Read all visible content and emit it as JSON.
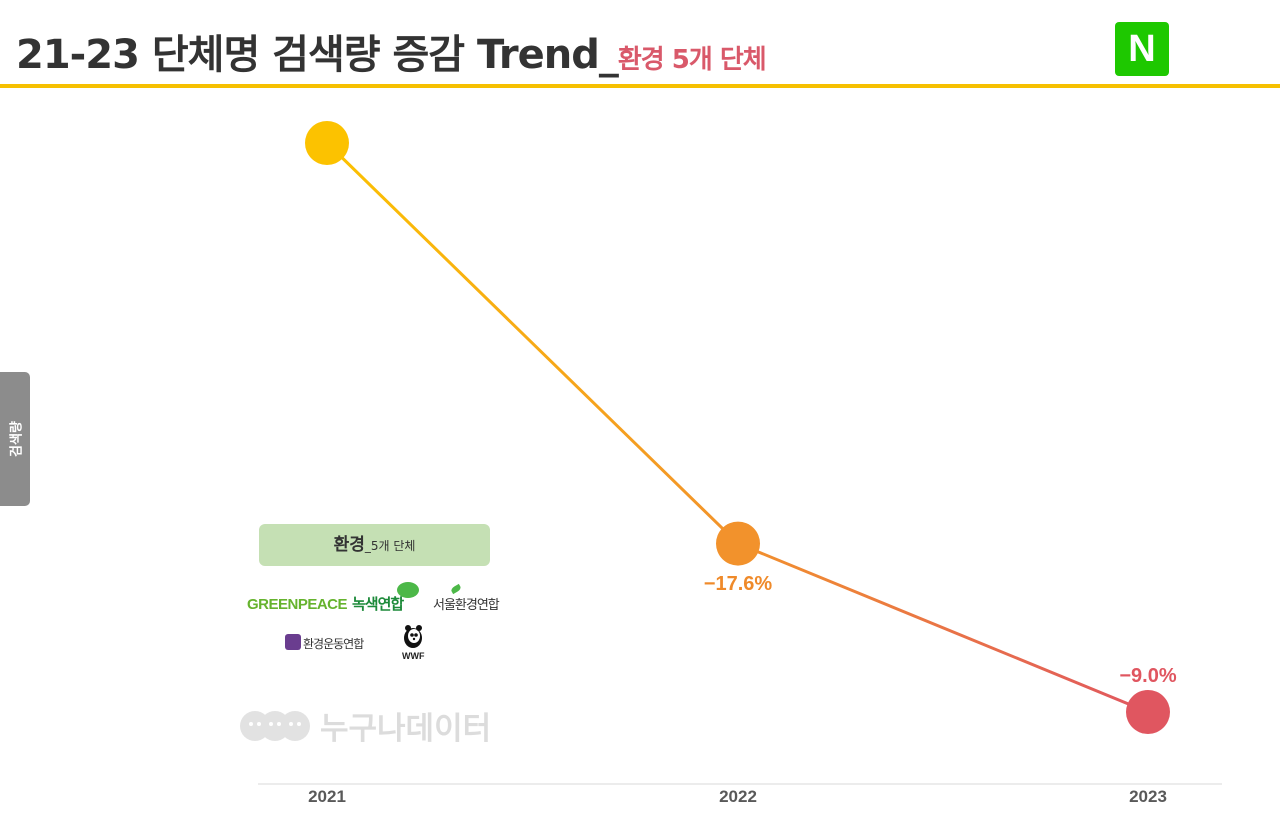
{
  "header": {
    "title": "21-23 단체명 검색량 증감 Trend_",
    "subtitle": "환경 5개 단체",
    "logo_letter": "N"
  },
  "y_axis_tab": {
    "label": "검색량"
  },
  "group": {
    "main": "환경",
    "sub": "_5개 단체",
    "organizations": [
      "GREENPEACE",
      "녹색연합",
      "서울환경연합",
      "환경운동연합",
      "WWF"
    ]
  },
  "watermark": {
    "text": "누구나데이터"
  },
  "colors": {
    "accent_bar": "#f6c000",
    "naver_green": "#1ec800",
    "point_2021": "#fcc200",
    "point_2022": "#f2922c",
    "point_2023": "#e05660",
    "label_2022": "#ef8a2a",
    "label_2023": "#e05660",
    "group_box": "#c5e0b4"
  },
  "chart_data": {
    "type": "line",
    "title": "21-23 단체명 검색량 증감 Trend_환경 5개 단체",
    "xlabel": "",
    "ylabel": "검색량",
    "categories": [
      "2021",
      "2022",
      "2023"
    ],
    "index_values": [
      100,
      82.4,
      75.0
    ],
    "change_labels": [
      "",
      "−17.6%",
      "−9.0%"
    ],
    "ylim": [
      73,
      101
    ],
    "grid": false,
    "legend": "none"
  }
}
